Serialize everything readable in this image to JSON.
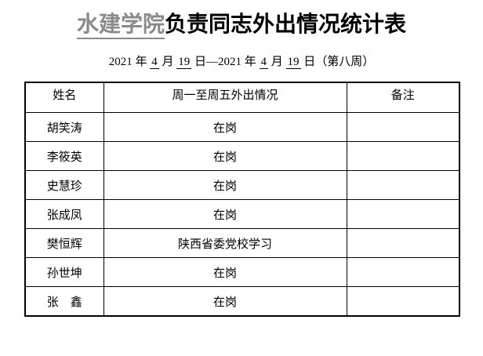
{
  "title": {
    "unit": "水建学院",
    "rest": "负责同志外出情况统计表"
  },
  "subtitle": {
    "parts": [
      {
        "text": "2021 年 "
      },
      {
        "text": "4"
      },
      {
        "text": " 月 "
      },
      {
        "text": "19"
      },
      {
        "text": " 日—2021 年 "
      },
      {
        "text": "4"
      },
      {
        "text": " 月 "
      },
      {
        "text": "19"
      },
      {
        "text": " 日（第八周）"
      }
    ]
  },
  "table": {
    "headers": [
      "姓名",
      "周一至周五外出情况",
      "备注"
    ],
    "rows": [
      {
        "name": "胡笑涛",
        "status": "在岗",
        "note": ""
      },
      {
        "name": "李筱英",
        "status": "在岗",
        "note": ""
      },
      {
        "name": "史慧珍",
        "status": "在岗",
        "note": ""
      },
      {
        "name": "张成凤",
        "status": "在岗",
        "note": ""
      },
      {
        "name": "樊恒辉",
        "status": "陕西省委党校学习",
        "note": ""
      },
      {
        "name": "孙世坤",
        "status": "在岗",
        "note": ""
      },
      {
        "name": "张　鑫",
        "status": "在岗",
        "note": ""
      }
    ]
  },
  "colors": {
    "title_highlight": "#8a8a8a",
    "text": "#000000",
    "border": "#000000",
    "background": "#ffffff"
  }
}
